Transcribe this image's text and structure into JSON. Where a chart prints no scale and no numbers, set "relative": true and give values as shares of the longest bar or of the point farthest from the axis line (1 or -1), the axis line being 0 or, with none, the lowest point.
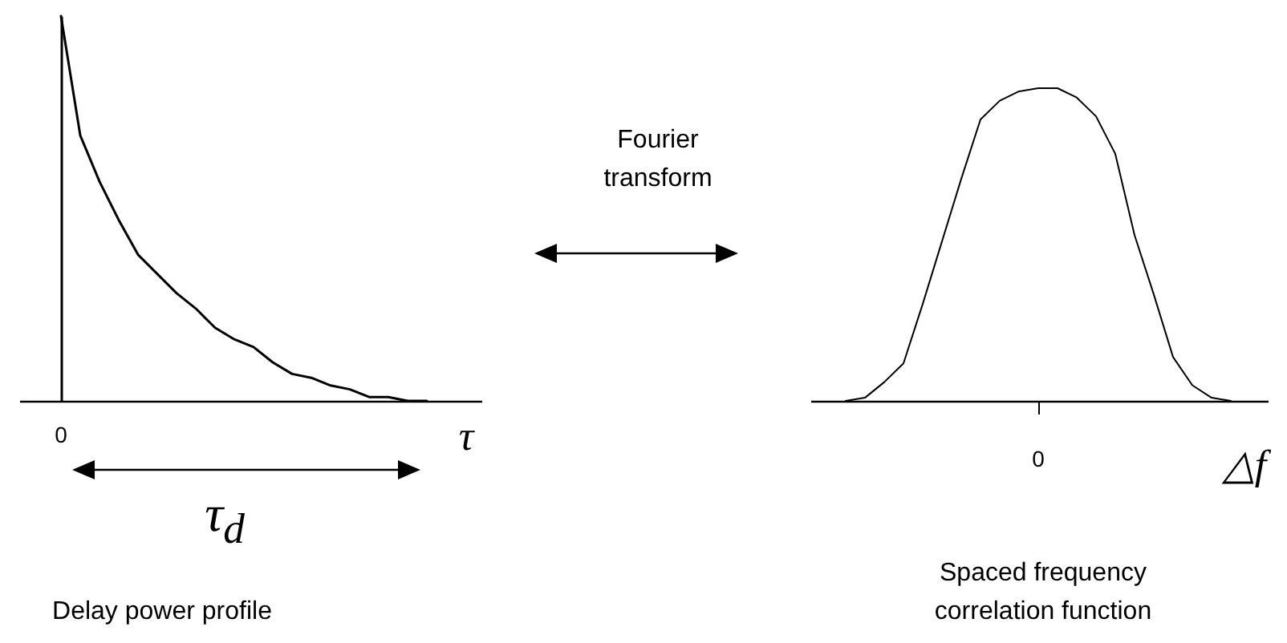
{
  "chart_data": [
    {
      "type": "line",
      "title": "Delay power profile",
      "xlabel": "τ",
      "relative": true,
      "categories": [
        null,
        null,
        null,
        null,
        null,
        null,
        null,
        null,
        null,
        null,
        null,
        null,
        null,
        null,
        null,
        null,
        null,
        null,
        null,
        null
      ],
      "series": [
        {
          "color": "#000000",
          "values": [
            1.0,
            0.69,
            0.57,
            0.47,
            0.38,
            0.33,
            0.28,
            0.24,
            0.19,
            0.16,
            0.14,
            0.1,
            0.07,
            0.06,
            0.04,
            0.03,
            0.01,
            0.01,
            0,
            0
          ]
        }
      ],
      "annotations": [
        "0",
        "τ$_{d}$"
      ]
    },
    {
      "type": "other",
      "title": "Fourier transform"
    },
    {
      "type": "line",
      "title": "Spaced frequency correlation function",
      "xlabel": "△f",
      "relative": true,
      "categories": [
        null,
        null,
        null,
        null,
        null,
        null,
        null,
        null,
        null,
        null,
        null,
        null,
        null,
        null,
        null,
        null,
        null,
        null,
        null,
        null,
        null
      ],
      "series": [
        {
          "color": "#000000",
          "values": [
            0,
            0.01,
            0.06,
            0.12,
            0.31,
            0.51,
            0.71,
            0.9,
            0.96,
            0.99,
            1.0,
            1.0,
            0.97,
            0.91,
            0.79,
            0.53,
            0.34,
            0.14,
            0.05,
            0.01,
            0
          ]
        }
      ],
      "annotations": [
        "0"
      ]
    }
  ]
}
